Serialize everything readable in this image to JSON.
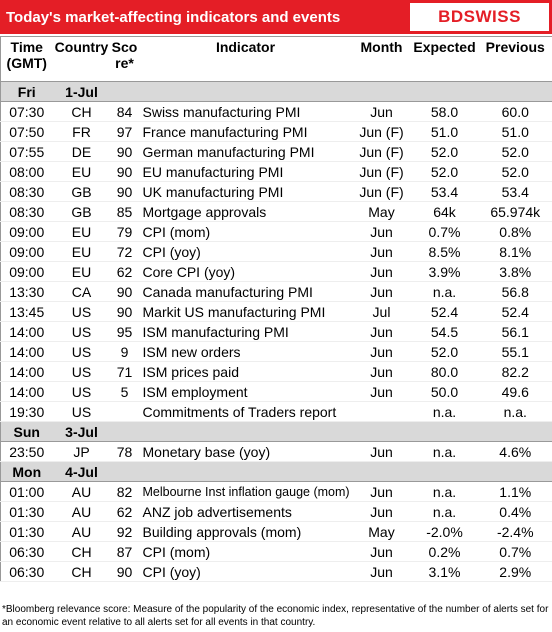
{
  "header": {
    "title": "Today's market-affecting indicators and events",
    "logo": "BDSWISS"
  },
  "columns": [
    [
      "Time",
      "(GMT)"
    ],
    [
      "Country"
    ],
    [
      "Sco",
      "re*"
    ],
    [
      "Indicator"
    ],
    [
      "Month"
    ],
    [
      "Expected"
    ],
    [
      "Previous"
    ]
  ],
  "sections": [
    {
      "day": "Fri",
      "date": "1-Jul",
      "rows": [
        [
          "07:30",
          "CH",
          "84",
          "Swiss manufacturing PMI",
          "Jun",
          "58.0",
          "60.0"
        ],
        [
          "07:50",
          "FR",
          "97",
          "France manufacturing PMI",
          "Jun (F)",
          "51.0",
          "51.0"
        ],
        [
          "07:55",
          "DE",
          "90",
          "German manufacturing PMI",
          "Jun (F)",
          "52.0",
          "52.0"
        ],
        [
          "08:00",
          "EU",
          "90",
          "EU manufacturing PMI",
          "Jun (F)",
          "52.0",
          "52.0"
        ],
        [
          "08:30",
          "GB",
          "90",
          "UK manufacturing PMI",
          "Jun (F)",
          "53.4",
          "53.4"
        ],
        [
          "08:30",
          "GB",
          "85",
          "Mortgage approvals",
          "May",
          "64k",
          "65.974k"
        ],
        [
          "09:00",
          "EU",
          "79",
          "CPI (mom)",
          "Jun",
          "0.7%",
          "0.8%"
        ],
        [
          "09:00",
          "EU",
          "72",
          "CPI (yoy)",
          "Jun",
          "8.5%",
          "8.1%"
        ],
        [
          "09:00",
          "EU",
          "62",
          "Core CPI (yoy)",
          "Jun",
          "3.9%",
          "3.8%"
        ],
        [
          "13:30",
          "CA",
          "90",
          "Canada manufacturing PMI",
          "Jun",
          "n.a.",
          "56.8"
        ],
        [
          "13:45",
          "US",
          "90",
          "Markit US manufacturing PMI",
          "Jul",
          "52.4",
          "52.4"
        ],
        [
          "14:00",
          "US",
          "95",
          "ISM manufacturing PMI",
          "Jun",
          "54.5",
          "56.1"
        ],
        [
          "14:00",
          "US",
          "9",
          "ISM new orders",
          "Jun",
          "52.0",
          "55.1"
        ],
        [
          "14:00",
          "US",
          "71",
          "ISM prices paid",
          "Jun",
          "80.0",
          "82.2"
        ],
        [
          "14:00",
          "US",
          "5",
          "ISM employment",
          "Jun",
          "50.0",
          "49.6"
        ],
        [
          "19:30",
          "US",
          null,
          "Commitments of Traders  report",
          null,
          "n.a.",
          "n.a."
        ]
      ]
    },
    {
      "day": "Sun",
      "date": "3-Jul",
      "rows": [
        [
          "23:50",
          "JP",
          "78",
          "Monetary base (yoy)",
          "Jun",
          "n.a.",
          "4.6%"
        ]
      ]
    },
    {
      "day": "Mon",
      "date": "4-Jul",
      "rows": [
        [
          "01:00",
          "AU",
          "82",
          "Melbourne Inst inflation gauge (mom)",
          "Jun",
          "n.a.",
          "1.1%"
        ],
        [
          "01:30",
          "AU",
          "62",
          "ANZ job advertisements",
          "Jun",
          "n.a.",
          "0.4%"
        ],
        [
          "01:30",
          "AU",
          "92",
          "Building approvals (mom)",
          "May",
          "-2.0%",
          "-2.4%"
        ],
        [
          "06:30",
          "CH",
          "87",
          "CPI (mom)",
          "Jun",
          "0.2%",
          "0.7%"
        ],
        [
          "06:30",
          "CH",
          "90",
          "CPI (yoy)",
          "Jun",
          "3.1%",
          "2.9%"
        ]
      ]
    }
  ],
  "footnote": "*Bloomberg relevance score:  Measure of the popularity of the economic index, representative of the number of alerts set for an economic event relative to all alerts set for all events in that country."
}
